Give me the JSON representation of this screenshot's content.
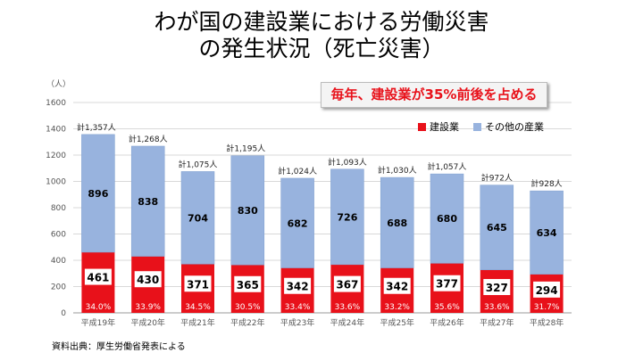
{
  "title_line1": "わが国の建設業における労働災害",
  "title_line2": "の発生状況（死亡災害）",
  "callout": "毎年、建設業が35%前後を占める",
  "source": "資料出典：厚生労働省発表による",
  "colors": {
    "construction": "#e8111a",
    "other": "#98b3de",
    "label_box": "#ffffff",
    "other_stroke": "#7f9fcf"
  },
  "chart_data": {
    "type": "bar",
    "stacked": true,
    "yunit": "（人）",
    "ylim": [
      0,
      1600
    ],
    "yticks": [
      0,
      200,
      400,
      600,
      800,
      1000,
      1200,
      1400,
      1600
    ],
    "grid": true,
    "legend_position": "top-right",
    "categories": [
      "平成19年",
      "平成20年",
      "平成21年",
      "平成22年",
      "平成23年",
      "平成24年",
      "平成25年",
      "平成26年",
      "平成27年",
      "平成28年"
    ],
    "series": [
      {
        "name": "建設業",
        "values": [
          461,
          430,
          371,
          365,
          342,
          367,
          342,
          377,
          327,
          294
        ]
      },
      {
        "name": "その他の産業",
        "values": [
          896,
          838,
          704,
          830,
          682,
          726,
          688,
          680,
          645,
          634
        ]
      }
    ],
    "totals": [
      "計1,357人",
      "計1,268人",
      "計1,075人",
      "計1,195人",
      "計1,024人",
      "計1,093人",
      "計1,030人",
      "計1,057人",
      "計972人",
      "計928人"
    ],
    "percentages": [
      "34.0%",
      "33.9%",
      "34.5%",
      "30.5%",
      "33.4%",
      "33.6%",
      "33.2%",
      "35.6%",
      "33.6%",
      "31.7%"
    ]
  }
}
